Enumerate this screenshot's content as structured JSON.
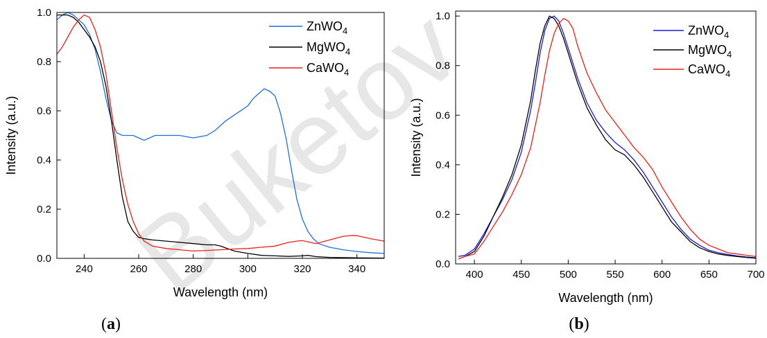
{
  "watermark": "Buketov",
  "chart_data": [
    {
      "type": "line",
      "panel_label": "a",
      "xlabel": "Wavelength (nm)",
      "ylabel": "Intensity (a.u.)",
      "xlim": [
        230,
        350
      ],
      "ylim": [
        0,
        1.0
      ],
      "xticks": [
        240,
        260,
        280,
        300,
        320,
        340
      ],
      "yticks": [
        0.0,
        0.2,
        0.4,
        0.6,
        0.8,
        1.0
      ],
      "ytick_decimals": 1,
      "legend_position": "top-right",
      "series": [
        {
          "base": "ZnWO",
          "sub": "4",
          "color": "#1f6fd6",
          "x": [
            230,
            232,
            234,
            236,
            238,
            240,
            242,
            244,
            246,
            248,
            250,
            252,
            254,
            256,
            258,
            260,
            262,
            264,
            266,
            268,
            270,
            275,
            280,
            285,
            288,
            292,
            296,
            300,
            302,
            304,
            306,
            308,
            310,
            312,
            314,
            316,
            318,
            320,
            322,
            324,
            326,
            330,
            335,
            340,
            345,
            350
          ],
          "y": [
            0.97,
            0.99,
            1.0,
            0.99,
            0.97,
            0.95,
            0.91,
            0.85,
            0.76,
            0.65,
            0.56,
            0.51,
            0.5,
            0.5,
            0.5,
            0.49,
            0.48,
            0.49,
            0.5,
            0.5,
            0.5,
            0.5,
            0.49,
            0.5,
            0.52,
            0.56,
            0.59,
            0.62,
            0.65,
            0.67,
            0.69,
            0.68,
            0.66,
            0.59,
            0.49,
            0.36,
            0.24,
            0.16,
            0.11,
            0.08,
            0.06,
            0.045,
            0.035,
            0.028,
            0.023,
            0.02
          ]
        },
        {
          "base": "MgWO",
          "sub": "4",
          "color": "#000000",
          "x": [
            230,
            232,
            234,
            236,
            238,
            240,
            242,
            244,
            246,
            248,
            250,
            252,
            254,
            256,
            258,
            260,
            262,
            265,
            270,
            275,
            280,
            285,
            288,
            290,
            295,
            300,
            305,
            310,
            315,
            320,
            322,
            325,
            330,
            340,
            350
          ],
          "y": [
            0.99,
            0.99,
            0.99,
            0.98,
            0.96,
            0.93,
            0.9,
            0.86,
            0.8,
            0.7,
            0.56,
            0.4,
            0.25,
            0.15,
            0.11,
            0.085,
            0.08,
            0.075,
            0.07,
            0.065,
            0.06,
            0.055,
            0.055,
            0.05,
            0.03,
            0.02,
            0.012,
            0.01,
            0.008,
            0.01,
            0.012,
            0.007,
            0.004,
            0.002,
            0.001
          ]
        },
        {
          "base": "CaWO",
          "sub": "4",
          "color": "#e8201a",
          "x": [
            230,
            232,
            234,
            236,
            238,
            240,
            242,
            244,
            246,
            248,
            250,
            252,
            254,
            256,
            258,
            260,
            262,
            265,
            270,
            275,
            280,
            285,
            290,
            295,
            300,
            305,
            310,
            315,
            318,
            320,
            325,
            330,
            335,
            338,
            340,
            345,
            350
          ],
          "y": [
            0.83,
            0.86,
            0.9,
            0.94,
            0.97,
            0.99,
            0.98,
            0.93,
            0.86,
            0.75,
            0.6,
            0.45,
            0.32,
            0.22,
            0.15,
            0.1,
            0.07,
            0.05,
            0.04,
            0.035,
            0.03,
            0.032,
            0.035,
            0.038,
            0.04,
            0.045,
            0.05,
            0.065,
            0.07,
            0.072,
            0.06,
            0.075,
            0.09,
            0.093,
            0.092,
            0.08,
            0.07
          ]
        }
      ]
    },
    {
      "type": "line",
      "panel_label": "b",
      "xlabel": "Wavelength (nm)",
      "ylabel": "Intensity (a.u.)",
      "xlim": [
        380,
        700
      ],
      "ylim": [
        0,
        1.02
      ],
      "xticks": [
        400,
        450,
        500,
        550,
        600,
        650,
        700
      ],
      "yticks": [
        0.0,
        0.2,
        0.4,
        0.6,
        0.8,
        1.0
      ],
      "ytick_decimals": 1,
      "legend_position": "top-right",
      "series": [
        {
          "base": "ZnWO",
          "sub": "4",
          "color": "#1a1ad6",
          "x": [
            383,
            390,
            400,
            410,
            420,
            430,
            440,
            450,
            460,
            465,
            470,
            475,
            480,
            485,
            490,
            495,
            500,
            510,
            520,
            530,
            540,
            550,
            560,
            570,
            580,
            590,
            600,
            610,
            620,
            630,
            640,
            650,
            660,
            670,
            680,
            690,
            700
          ],
          "y": [
            0.03,
            0.035,
            0.06,
            0.12,
            0.19,
            0.26,
            0.34,
            0.45,
            0.62,
            0.73,
            0.85,
            0.94,
            0.99,
            1.0,
            0.98,
            0.93,
            0.87,
            0.75,
            0.65,
            0.58,
            0.53,
            0.49,
            0.46,
            0.42,
            0.37,
            0.31,
            0.25,
            0.19,
            0.14,
            0.1,
            0.075,
            0.055,
            0.045,
            0.038,
            0.032,
            0.028,
            0.025
          ]
        },
        {
          "base": "MgWO",
          "sub": "4",
          "color": "#000000",
          "x": [
            383,
            390,
            400,
            410,
            420,
            430,
            440,
            450,
            460,
            465,
            470,
            475,
            480,
            485,
            490,
            495,
            500,
            510,
            520,
            530,
            540,
            550,
            560,
            570,
            580,
            590,
            600,
            610,
            620,
            630,
            640,
            650,
            660,
            670,
            680,
            690,
            700
          ],
          "y": [
            0.02,
            0.03,
            0.05,
            0.11,
            0.19,
            0.27,
            0.36,
            0.48,
            0.66,
            0.78,
            0.89,
            0.96,
            1.0,
            0.99,
            0.96,
            0.91,
            0.85,
            0.73,
            0.63,
            0.56,
            0.5,
            0.46,
            0.44,
            0.4,
            0.35,
            0.29,
            0.23,
            0.17,
            0.13,
            0.09,
            0.065,
            0.05,
            0.04,
            0.034,
            0.03,
            0.026,
            0.023
          ]
        },
        {
          "base": "CaWO",
          "sub": "4",
          "color": "#e8201a",
          "x": [
            383,
            390,
            400,
            410,
            420,
            430,
            440,
            450,
            460,
            470,
            475,
            480,
            485,
            490,
            495,
            500,
            505,
            510,
            520,
            530,
            540,
            550,
            560,
            570,
            580,
            590,
            600,
            610,
            620,
            630,
            640,
            650,
            660,
            670,
            680,
            690,
            700
          ],
          "y": [
            0.02,
            0.03,
            0.04,
            0.09,
            0.15,
            0.21,
            0.28,
            0.36,
            0.47,
            0.65,
            0.76,
            0.86,
            0.93,
            0.97,
            0.99,
            0.98,
            0.95,
            0.88,
            0.77,
            0.69,
            0.62,
            0.57,
            0.52,
            0.47,
            0.43,
            0.38,
            0.31,
            0.25,
            0.19,
            0.14,
            0.1,
            0.075,
            0.06,
            0.045,
            0.04,
            0.035,
            0.03
          ]
        }
      ]
    }
  ]
}
